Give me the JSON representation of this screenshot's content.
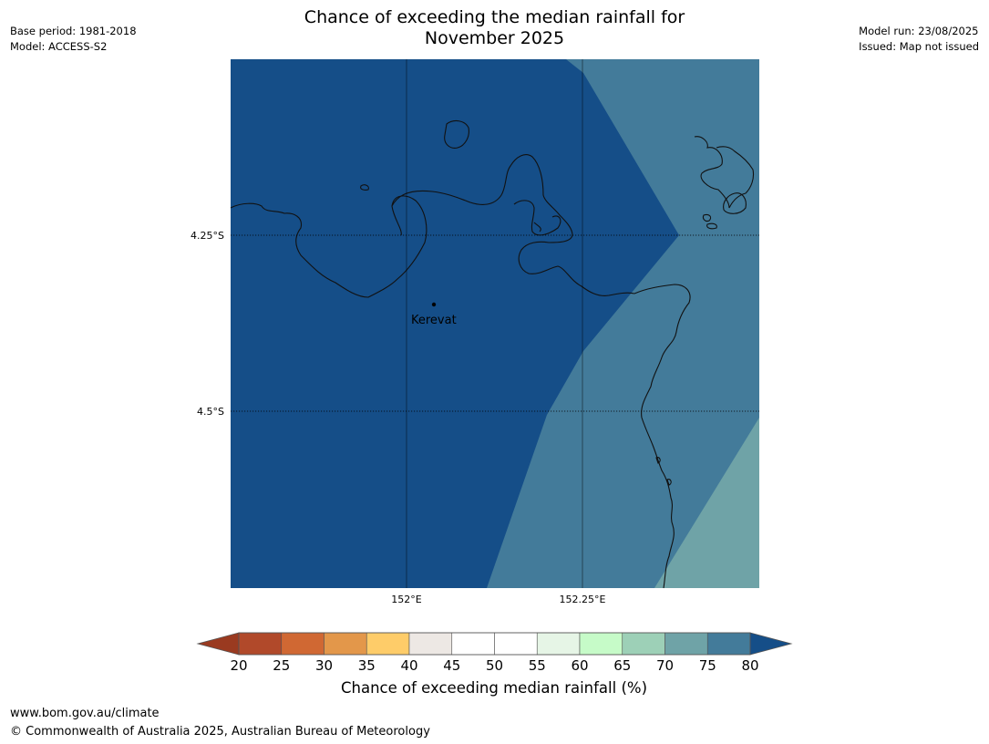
{
  "title_line1": "Chance of exceeding the median rainfall for",
  "title_line2": "November 2025",
  "meta_left": [
    "Base period: 1981-2018",
    "Model: ACCESS-S2"
  ],
  "meta_right": [
    "Model run: 23/08/2025",
    "Issued: Map not issued"
  ],
  "map": {
    "lat_labels": [
      "4.25°S",
      "4.5°S"
    ],
    "lon_labels": [
      "152°E",
      "152.25°E"
    ],
    "place": "Kerevat",
    "zone_colors": {
      "above_80": "#154e88",
      "75_80": "#437b9a",
      "70_75": "#6fa3a7"
    }
  },
  "colorbar": {
    "label": "Chance of exceeding median rainfall (%)",
    "ticks": [
      "20",
      "25",
      "30",
      "35",
      "40",
      "45",
      "50",
      "55",
      "60",
      "65",
      "70",
      "75",
      "80"
    ],
    "under_color": "#9a3a20",
    "over_color": "#154e88",
    "colors": [
      "#b1492a",
      "#d06833",
      "#e3974a",
      "#fecc69",
      "#ede8e4",
      "#ffffff",
      "#ffffff",
      "#e6f5e6",
      "#c6fbc8",
      "#9dd0b7",
      "#6fa3a7",
      "#437b9a"
    ]
  },
  "footer": {
    "url": "www.bom.gov.au/climate",
    "copyright": "© Commonwealth of Australia 2025, Australian Bureau of Meteorology"
  }
}
